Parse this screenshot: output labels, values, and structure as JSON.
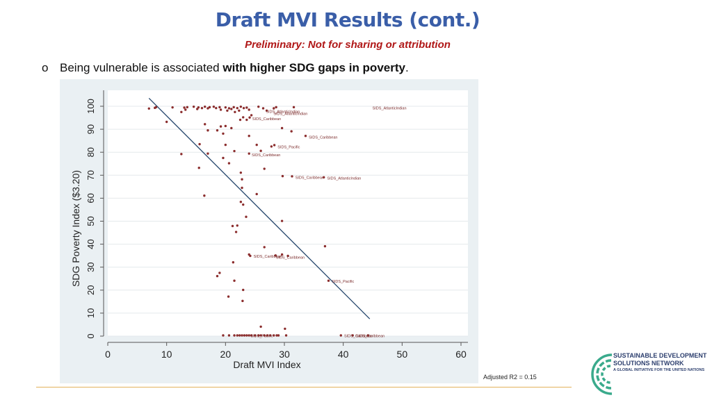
{
  "slide": {
    "title": "Draft MVI Results (cont.)",
    "subtitle": "Preliminary: Not for sharing or attribution",
    "bullet_marker": "o",
    "bullet_text_plain": "Being vulnerable is associated ",
    "bullet_text_bold": "with higher SDG gaps in poverty",
    "bullet_text_end": ".",
    "note": "Adjusted R2 = 0.15"
  },
  "logo": {
    "line1": "SUSTAINABLE DEVELOPMENT",
    "line2": "SOLUTIONS NETWORK",
    "tagline": "A GLOBAL INITIATIVE FOR THE UNITED NATIONS"
  },
  "colors": {
    "title": "#3a5ea8",
    "subtitle": "#b01717",
    "point": "#8b2d2d",
    "fit_line": "#24456b",
    "plot_bg": "#ffffff",
    "outer_bg": "#eaf0f3",
    "logo_green": "#3aaa8c",
    "logo_navy": "#2d3f6e"
  },
  "chart_data": {
    "type": "scatter",
    "xlabel": "Draft MVI Index",
    "ylabel": "SDG Poverty Index ($3.20)",
    "xlim": [
      0,
      60
    ],
    "ylim": [
      0,
      100
    ],
    "xticks": [
      0,
      10,
      20,
      30,
      40,
      50,
      60
    ],
    "yticks": [
      0,
      10,
      20,
      30,
      40,
      50,
      60,
      70,
      80,
      90,
      100
    ],
    "grid": "horizontal",
    "fit_line": {
      "x": [
        7,
        44.5
      ],
      "y": [
        103.5,
        7.5
      ]
    },
    "points": [
      [
        7,
        99
      ],
      [
        8,
        99.3
      ],
      [
        8.2,
        99.6
      ],
      [
        11,
        99.5
      ],
      [
        12.5,
        97.5
      ],
      [
        13,
        99.4
      ],
      [
        13.2,
        98.5
      ],
      [
        13.5,
        99.6
      ],
      [
        14.6,
        99.8
      ],
      [
        15.2,
        98.8
      ],
      [
        15.4,
        99.5
      ],
      [
        16,
        99.2
      ],
      [
        16.5,
        99.8
      ],
      [
        17,
        99.1
      ],
      [
        17.3,
        99.6
      ],
      [
        18,
        99.8
      ],
      [
        18.4,
        99.2
      ],
      [
        19,
        99.6
      ],
      [
        19.2,
        98.5
      ],
      [
        20,
        99.5
      ],
      [
        20.3,
        98.1
      ],
      [
        20.6,
        99.1
      ],
      [
        21,
        98.8
      ],
      [
        21.4,
        99.6
      ],
      [
        21.6,
        97.5
      ],
      [
        22,
        99.2
      ],
      [
        22.3,
        98.1
      ],
      [
        22.6,
        99.8
      ],
      [
        23.1,
        99.2
      ],
      [
        23.6,
        99.4
      ],
      [
        24,
        98.5
      ],
      [
        24.4,
        96.1
      ],
      [
        25.6,
        99.8
      ],
      [
        26.4,
        99.1
      ],
      [
        27,
        98.1
      ],
      [
        28.2,
        99.1
      ],
      [
        28.6,
        99.6
      ],
      [
        31.6,
        99.6
      ],
      [
        23,
        95.2
      ],
      [
        23.6,
        94.1
      ],
      [
        24.1,
        95.1
      ],
      [
        22.5,
        94.1
      ],
      [
        10,
        93.2
      ],
      [
        16.5,
        92.2
      ],
      [
        17,
        89.5
      ],
      [
        18.6,
        89.5
      ],
      [
        19.2,
        91.2
      ],
      [
        19.6,
        88.1
      ],
      [
        20,
        91.4
      ],
      [
        21,
        90.5
      ],
      [
        29.6,
        90.5
      ],
      [
        31.2,
        89.1
      ],
      [
        24,
        87.1
      ],
      [
        33.6,
        87.1
      ],
      [
        15.6,
        83.5
      ],
      [
        20,
        83.2
      ],
      [
        21.5,
        80.5
      ],
      [
        25.3,
        83.2
      ],
      [
        27.8,
        82.5
      ],
      [
        28.3,
        83.1
      ],
      [
        12.5,
        79.2
      ],
      [
        17,
        79.4
      ],
      [
        19.6,
        77.5
      ],
      [
        24,
        79.4
      ],
      [
        26,
        80.6
      ],
      [
        20.6,
        75.2
      ],
      [
        15.5,
        73.2
      ],
      [
        26.6,
        72.8
      ],
      [
        22.6,
        71.1
      ],
      [
        22.8,
        68.2
      ],
      [
        29.7,
        69.6
      ],
      [
        31.3,
        69.5
      ],
      [
        36.7,
        69.1
      ],
      [
        22.8,
        64.5
      ],
      [
        25.3,
        61.8
      ],
      [
        16.4,
        61.1
      ],
      [
        22.6,
        58.4
      ],
      [
        23,
        57.2
      ],
      [
        23.5,
        51.9
      ],
      [
        29.6,
        50.1
      ],
      [
        21.2,
        47.9
      ],
      [
        22,
        48.1
      ],
      [
        21.8,
        45.3
      ],
      [
        26.6,
        38.7
      ],
      [
        36.9,
        39.1
      ],
      [
        24,
        35.5
      ],
      [
        24.2,
        34.9
      ],
      [
        28.5,
        35.1
      ],
      [
        29.6,
        35.5
      ],
      [
        30.6,
        34.9
      ],
      [
        21.3,
        32.1
      ],
      [
        19,
        27.5
      ],
      [
        18.6,
        26.1
      ],
      [
        37.5,
        24.1
      ],
      [
        21.5,
        24.1
      ],
      [
        23,
        20.1
      ],
      [
        20.5,
        17.2
      ],
      [
        22.9,
        15.3
      ],
      [
        26,
        4.1
      ],
      [
        30.1,
        3.2
      ],
      [
        19.6,
        0.3
      ],
      [
        20.6,
        0.3
      ],
      [
        21.5,
        0.3
      ],
      [
        22,
        0.3
      ],
      [
        22.4,
        0.3
      ],
      [
        22.8,
        0.3
      ],
      [
        23.2,
        0.3
      ],
      [
        23.6,
        0.3
      ],
      [
        24,
        0.3
      ],
      [
        24.4,
        0.3
      ],
      [
        25,
        0.3
      ],
      [
        25.6,
        0.3
      ],
      [
        26,
        0.3
      ],
      [
        26.6,
        0.3
      ],
      [
        27.1,
        0.3
      ],
      [
        27.6,
        0.3
      ],
      [
        28.2,
        0.3
      ],
      [
        28.7,
        0.3
      ],
      [
        29,
        0.3
      ],
      [
        30.3,
        0.3
      ],
      [
        39.6,
        0.3
      ],
      [
        41.6,
        0.3
      ],
      [
        44.2,
        0.3
      ]
    ],
    "labels": [
      {
        "text": "SIDS_AtlanticIndian",
        "x": 44.6,
        "y": 99.3
      },
      {
        "text": "SIDS_AtlanticIndian",
        "x": 26.5,
        "y": 97.8
      },
      {
        "text": "SIDS_AtlanticIndian",
        "x": 27.8,
        "y": 96.8
      },
      {
        "text": "SIDS_Caribbean",
        "x": 24.2,
        "y": 94.6
      },
      {
        "text": "SIDS_Caribbean",
        "x": 33.8,
        "y": 86.6
      },
      {
        "text": "SIDS_Pacific",
        "x": 28.5,
        "y": 82.3
      },
      {
        "text": "SIDS_Caribbean",
        "x": 24.1,
        "y": 78.9
      },
      {
        "text": "SIDS_Caribbean",
        "x": 31.5,
        "y": 69.1
      },
      {
        "text": "SIDS_AtlanticIndian",
        "x": 36.9,
        "y": 68.7
      },
      {
        "text": "SIDS_Caribbean",
        "x": 24.4,
        "y": 34.7
      },
      {
        "text": "SIDS_Caribbean",
        "x": 28.2,
        "y": 34.3
      },
      {
        "text": "SIDS_Pacific",
        "x": 37.7,
        "y": 23.9
      },
      {
        "text": "SIDS_Pacific",
        "x": 23.9,
        "y": 0.1
      },
      {
        "text": "SIDS_Caribbean",
        "x": 39.8,
        "y": 0.1
      },
      {
        "text": "SIDS_Caribbean",
        "x": 41.8,
        "y": 0.1
      }
    ]
  }
}
